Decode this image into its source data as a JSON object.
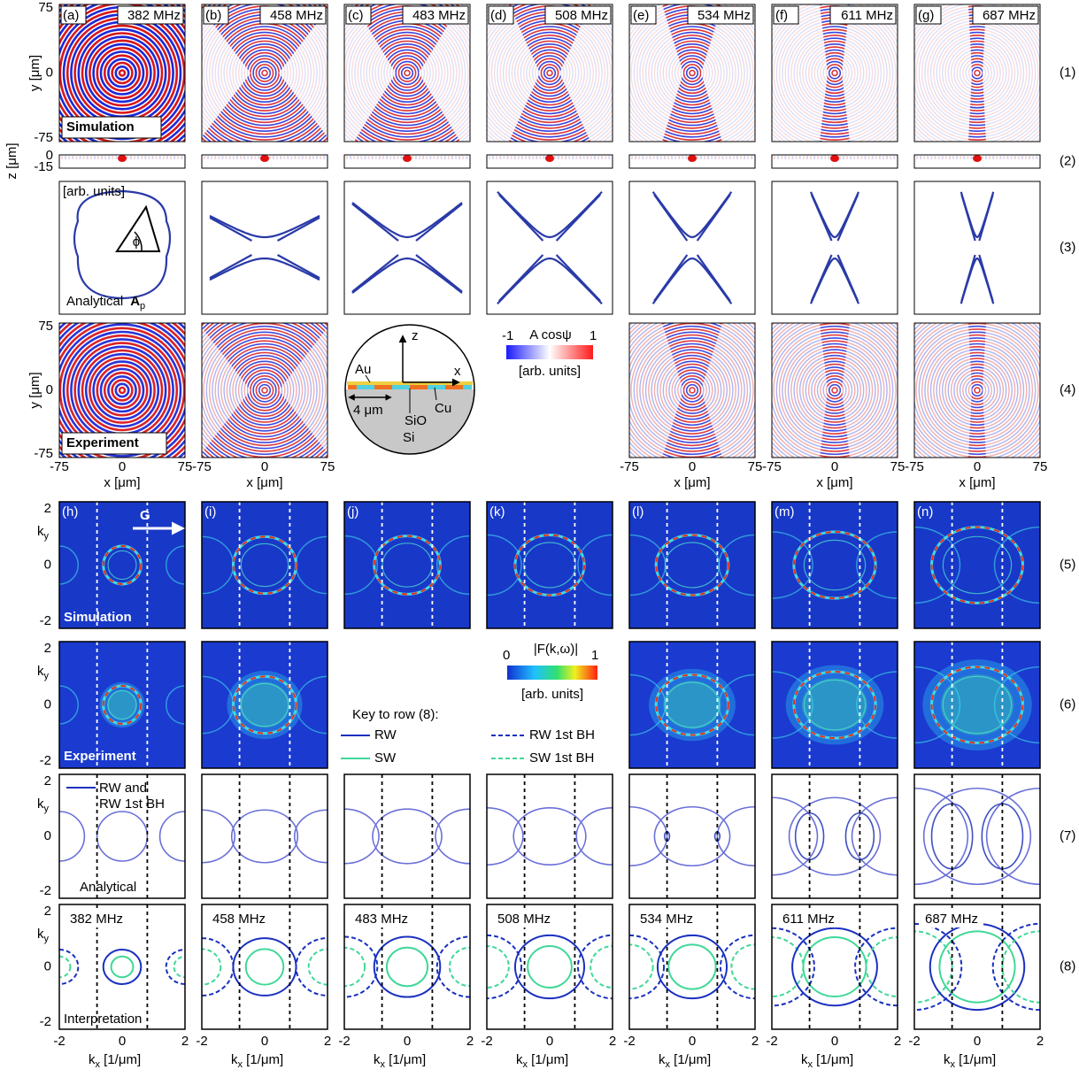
{
  "panel_letters": [
    "(a)",
    "(b)",
    "(c)",
    "(d)",
    "(e)",
    "(f)",
    "(g)",
    "(h)",
    "(i)",
    "(j)",
    "(k)",
    "(l)",
    "(m)",
    "(n)"
  ],
  "frequencies": [
    "382 MHz",
    "458 MHz",
    "483 MHz",
    "508 MHz",
    "534 MHz",
    "611 MHz",
    "687 MHz"
  ],
  "row_numbers": [
    "(1)",
    "(2)",
    "(3)",
    "(4)",
    "(5)",
    "(6)",
    "(7)",
    "(8)"
  ],
  "axes": {
    "y_label": "y [μm]",
    "z_label": "z [μm]",
    "x_label": "x [μm]",
    "xy_ticks": [
      "-75",
      "0",
      "75"
    ],
    "z_ticks": [
      "0",
      "-15"
    ],
    "k_main": "k",
    "k_sub_x": "x",
    "k_sub_y": "y",
    "k_unit": " [1/μm]",
    "k_ticks": [
      "-2",
      "0",
      "2"
    ]
  },
  "row_titles": {
    "simulation": "Simulation",
    "experiment": "Experiment",
    "analytical": "Analytical",
    "interpretation": "Interpretation"
  },
  "row3": {
    "units": "[arb. units]",
    "phi": "ϕ",
    "ap_main": "A",
    "ap_sub": "p"
  },
  "schematic": {
    "z": "z",
    "x": "x",
    "au": "Au",
    "cu": "Cu",
    "scale": "4 μm",
    "sio": "SiO",
    "si": "Si"
  },
  "colorbar_field": {
    "min": "-1",
    "max": "1",
    "title": "A cosψ",
    "units": "[arb. units]"
  },
  "colorbar_fourier": {
    "min": "0",
    "max": "1",
    "title": "|F(k,ω)|",
    "units": "[arb. units]"
  },
  "key": {
    "title": "Key to row (8):",
    "rw": "RW",
    "sw": "SW",
    "rw_bh": "RW 1st BH",
    "sw_bh": "SW 1st BH"
  },
  "row7_legend": [
    "RW and",
    "RW 1st BH"
  ],
  "g_label": "G"
}
